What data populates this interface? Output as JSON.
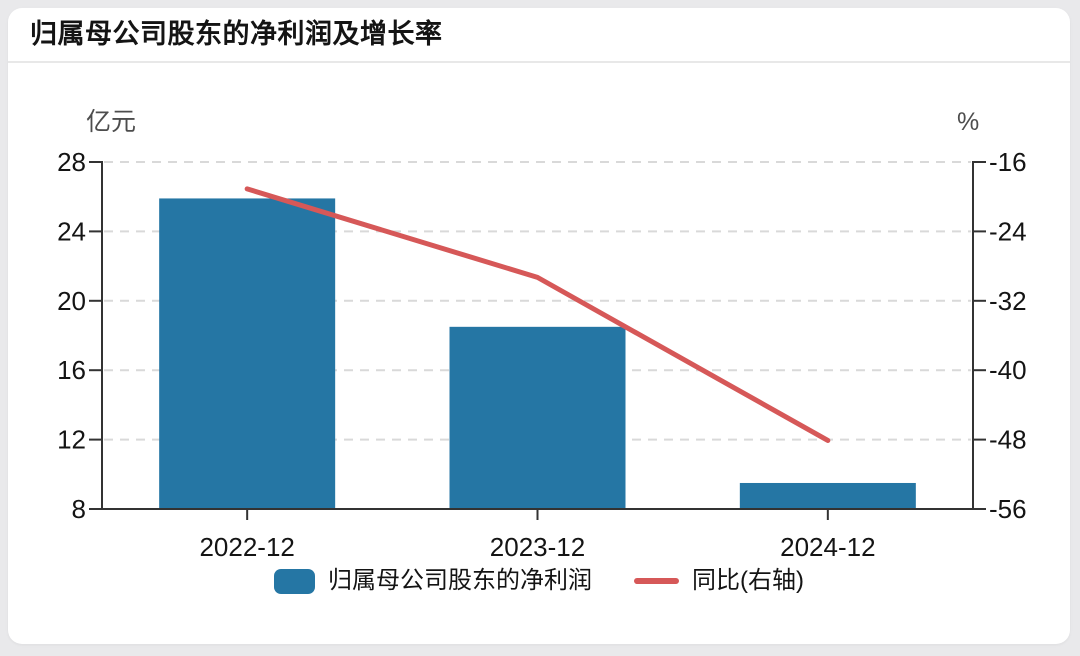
{
  "page": {
    "background_color": "#e9e9eb",
    "card_color": "#ffffff"
  },
  "header": {
    "title": "归属母公司股东的净利润及增长率"
  },
  "chart_data": {
    "type": "bar+line",
    "title": "归属母公司股东的净利润及增长率",
    "categories": [
      "2022-12",
      "2023-12",
      "2024-12"
    ],
    "series": [
      {
        "name": "归属母公司股东的净利润",
        "type": "bar",
        "axis": "left",
        "color": "#2576a4",
        "values": [
          25.9,
          18.5,
          9.5
        ]
      },
      {
        "name": "同比(右轴)",
        "type": "line",
        "axis": "right",
        "color": "#d65858",
        "values": [
          -19.1,
          -29.3,
          -48.1
        ]
      }
    ],
    "left_axis": {
      "unit": "亿元",
      "min": 8,
      "max": 28,
      "ticks": [
        28,
        24,
        20,
        16,
        12,
        8
      ]
    },
    "right_axis": {
      "unit": "%",
      "min": -56,
      "max": -16,
      "ticks": [
        -16,
        -24,
        -32,
        -40,
        -48,
        -56
      ]
    },
    "grid": "horizontal dashed",
    "grid_color": "#d9d9d9",
    "axis_color": "#333333",
    "label_color": "#141414",
    "legend_position": "bottom"
  }
}
